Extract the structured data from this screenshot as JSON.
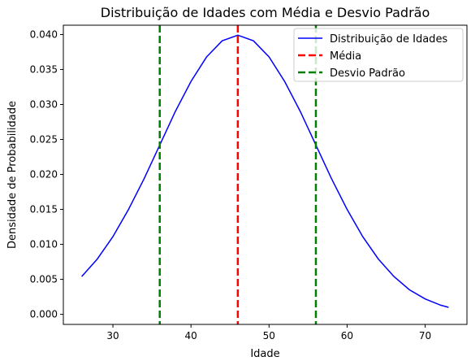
{
  "chart_data": {
    "type": "line",
    "title": "Distribuição de Idades com Média e Desvio Padrão",
    "xlabel": "Idade",
    "ylabel": "Densidade de Probabilidade",
    "xlim": [
      23.65,
      75.35
    ],
    "ylim": [
      -0.00144,
      0.04133
    ],
    "x_ticks": [
      30,
      40,
      50,
      60,
      70
    ],
    "y_ticks": [
      0.0,
      0.005,
      0.01,
      0.015,
      0.02,
      0.025,
      0.03,
      0.035,
      0.04
    ],
    "y_tick_labels": [
      "0.000",
      "0.005",
      "0.010",
      "0.015",
      "0.020",
      "0.025",
      "0.030",
      "0.035",
      "0.040"
    ],
    "grid": false,
    "legend_position": "top-right",
    "series": [
      {
        "name": "Distribuição de Idades",
        "kind": "line",
        "color": "#0000ff",
        "x": [
          26,
          28,
          30,
          32,
          34,
          36,
          38,
          40,
          42,
          44,
          46,
          48,
          50,
          52,
          54,
          56,
          58,
          60,
          62,
          64,
          66,
          68,
          70,
          72,
          73
        ],
        "y": [
          0.0054,
          0.0079,
          0.0111,
          0.015,
          0.0194,
          0.0242,
          0.029,
          0.0333,
          0.0368,
          0.0391,
          0.0399,
          0.0391,
          0.0368,
          0.0333,
          0.029,
          0.0242,
          0.0194,
          0.015,
          0.0111,
          0.0079,
          0.0054,
          0.0035,
          0.0022,
          0.0013,
          0.001
        ]
      },
      {
        "name": "Média",
        "kind": "vline",
        "color": "#ff0000",
        "dashed": true,
        "x": [
          46
        ]
      },
      {
        "name": "Desvio Padrão",
        "kind": "vline",
        "color": "#008000",
        "dashed": true,
        "x": [
          36,
          56
        ]
      }
    ]
  }
}
